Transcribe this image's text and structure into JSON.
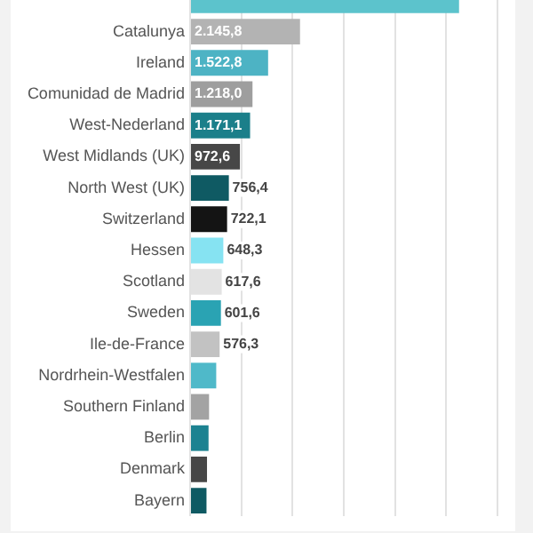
{
  "chart_data": {
    "type": "bar",
    "orientation": "horizontal",
    "categories": [
      null,
      "Catalunya",
      "Ireland",
      "Comunidad de Madrid",
      "West-Nederland",
      "West Midlands (UK)",
      "North West (UK)",
      "Switzerland",
      "Hessen",
      "Scotland",
      "Sweden",
      "Ile-de-France",
      "Nordrhein-Westfalen",
      "Southern Finland",
      "Berlin",
      "Denmark",
      "Bayern"
    ],
    "values": [
      5250,
      2145.8,
      1522.8,
      1218.0,
      1171.1,
      972.6,
      756.4,
      722.1,
      648.3,
      617.6,
      601.6,
      576.3,
      510,
      370,
      360,
      330,
      320
    ],
    "value_labels": [
      null,
      "2.145,8",
      "1.522,8",
      "1.218,0",
      "1.171,1",
      "972,6",
      "756,4",
      "722,1",
      "648,3",
      "617,6",
      "601,6",
      "576,3",
      null,
      null,
      null,
      null,
      null
    ],
    "colors": [
      "#5cc3cc",
      "#b3b3b3",
      "#4db3c4",
      "#9e9e9e",
      "#1b7f8a",
      "#474747",
      "#0f5a63",
      "#141414",
      "#86e3f2",
      "#e3e3e3",
      "#2aa3b3",
      "#c2c2c2",
      "#4fb9c9",
      "#a3a3a3",
      "#1c8291",
      "#474747",
      "#0f5a63"
    ],
    "xlim": [
      0,
      6000
    ],
    "xticks": [
      {
        "value": 0,
        "label": null
      },
      {
        "value": 1000,
        "label": null
      },
      {
        "value": 2000,
        "label": null
      },
      {
        "value": 3000,
        "label": null
      },
      {
        "value": 4000,
        "label": null
      },
      {
        "value": 5000,
        "label": null
      },
      {
        "value": 6000,
        "label": null
      }
    ],
    "grid": "x",
    "tick_labels": "y"
  }
}
